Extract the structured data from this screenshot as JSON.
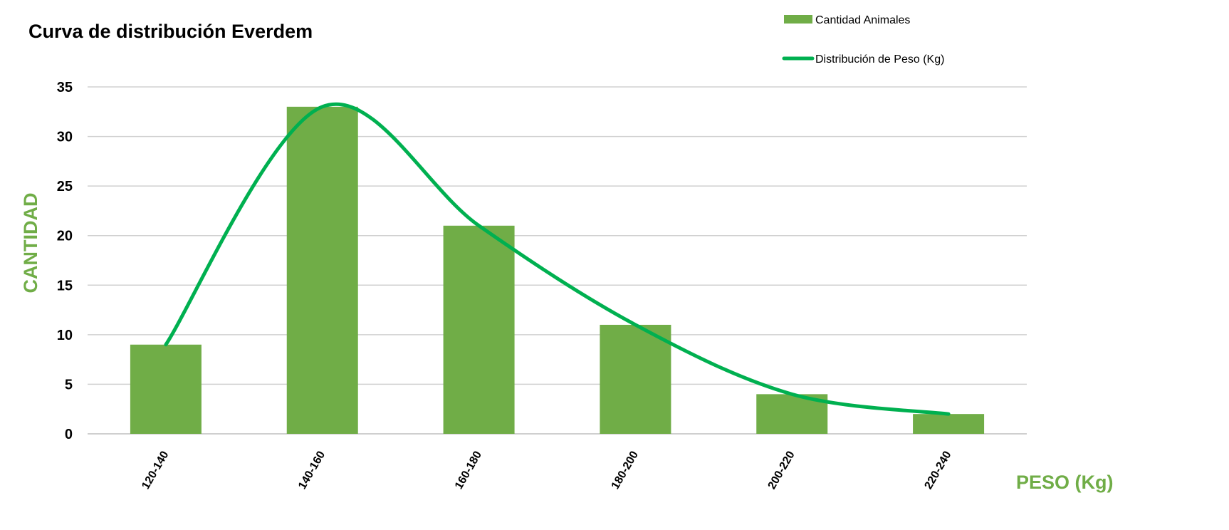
{
  "colors": {
    "bar": "#70ad47",
    "line": "#00b050",
    "grid": "#d0d0d0",
    "axis_label": "#70ad47"
  },
  "chart_data": {
    "type": "bar",
    "title": "Curva de distribución Everdem",
    "xlabel": "PESO (Kg)",
    "ylabel": "CANTIDAD",
    "categories": [
      "120-140",
      "140-160",
      "160-180",
      "180-200",
      "200-220",
      "220-240"
    ],
    "series": [
      {
        "name": "Cantidad Animales",
        "type": "bar",
        "values": [
          9,
          33,
          21,
          11,
          4,
          2
        ]
      },
      {
        "name": "Distribución de Peso (Kg)",
        "type": "line",
        "smooth": true,
        "values": [
          9,
          33,
          21,
          11,
          4,
          2
        ]
      }
    ],
    "ylim": [
      0,
      35
    ],
    "yticks": [
      0,
      5,
      10,
      15,
      20,
      25,
      30,
      35
    ],
    "grid": true,
    "legend_position": "top-right"
  }
}
